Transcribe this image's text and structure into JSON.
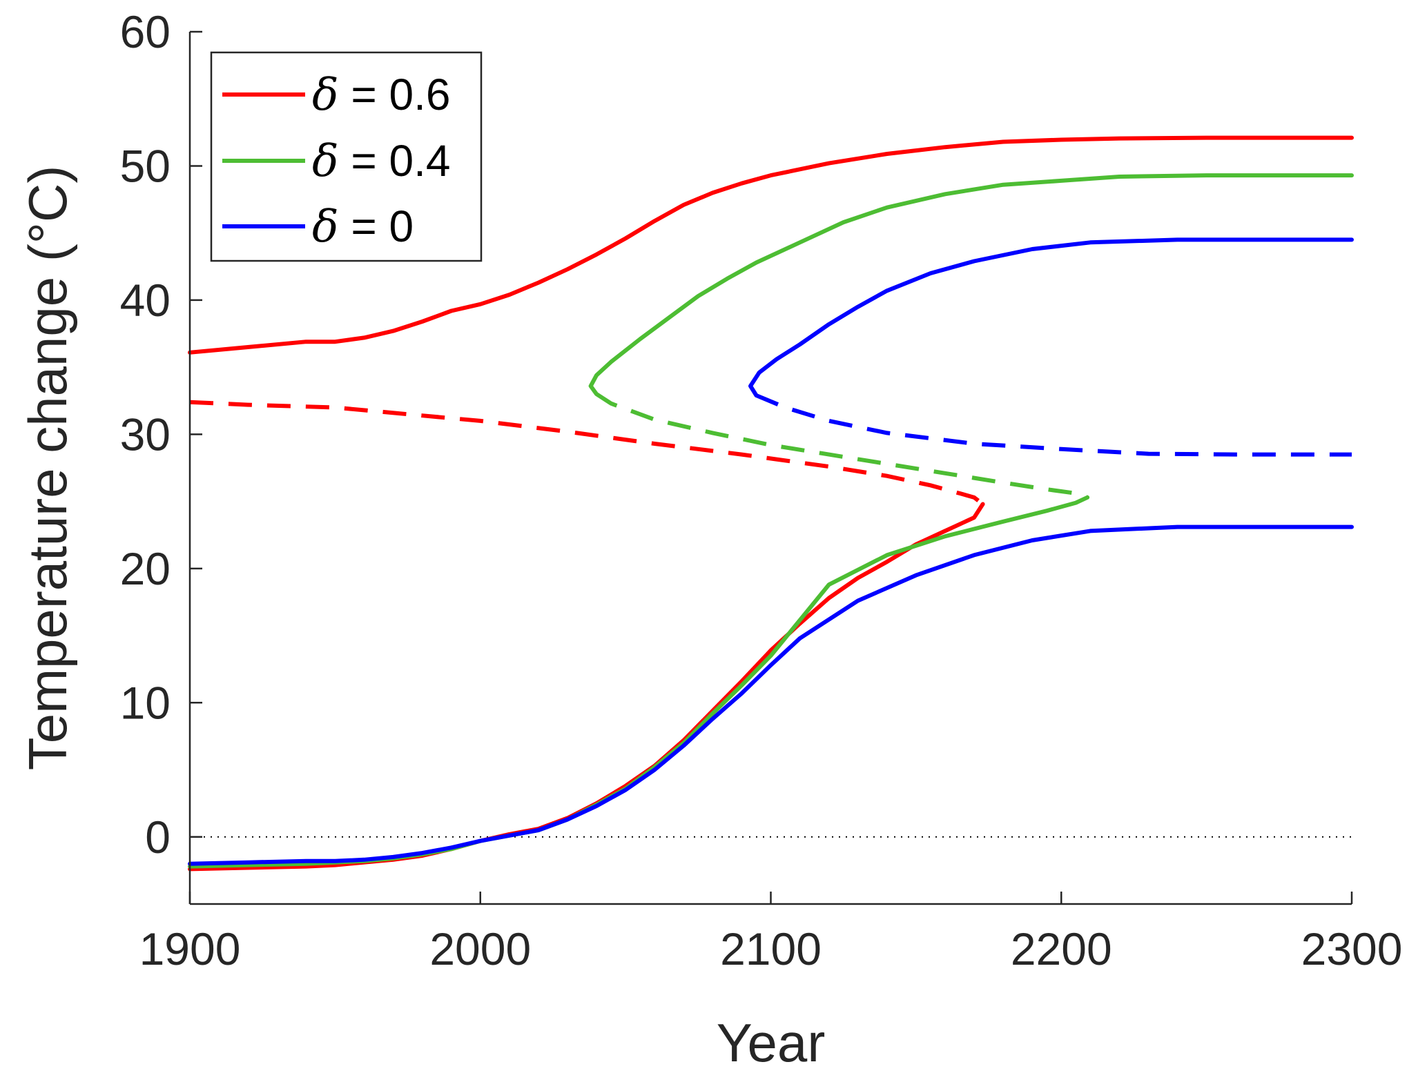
{
  "chart_data": {
    "type": "line",
    "title": "",
    "xlabel": "Year",
    "ylabel": "Temperature change (°C)",
    "xlim": [
      1900,
      2300
    ],
    "ylim": [
      -5,
      60
    ],
    "xticks": [
      1900,
      2000,
      2100,
      2200,
      2300
    ],
    "yticks": [
      0,
      10,
      20,
      30,
      40,
      50,
      60
    ],
    "grid": false,
    "legend_position": "top-left",
    "zero_reference_line": {
      "y": 0,
      "style": "dotted",
      "color": "#000000"
    },
    "legend": [
      {
        "symbol": "δ",
        "text": " = 0.6",
        "color": "#ff0000"
      },
      {
        "symbol": "δ",
        "text": " = 0.4",
        "color": "#4dbd33"
      },
      {
        "symbol": "δ",
        "text": " = 0",
        "color": "#0000ff"
      }
    ],
    "series": [
      {
        "legend_index": 0,
        "color": "#ff0000",
        "upper_stable": [
          [
            1900,
            36.1
          ],
          [
            1920,
            36.5
          ],
          [
            1940,
            36.9
          ],
          [
            1950,
            36.9
          ],
          [
            1960,
            37.2
          ],
          [
            1970,
            37.7
          ],
          [
            1980,
            38.4
          ],
          [
            1990,
            39.2
          ],
          [
            2000,
            39.7
          ],
          [
            2010,
            40.4
          ],
          [
            2020,
            41.3
          ],
          [
            2030,
            42.3
          ],
          [
            2040,
            43.4
          ],
          [
            2050,
            44.6
          ],
          [
            2060,
            45.9
          ],
          [
            2070,
            47.1
          ],
          [
            2080,
            48.0
          ],
          [
            2090,
            48.7
          ],
          [
            2100,
            49.3
          ],
          [
            2120,
            50.2
          ],
          [
            2140,
            50.9
          ],
          [
            2160,
            51.4
          ],
          [
            2180,
            51.8
          ],
          [
            2200,
            51.95
          ],
          [
            2220,
            52.05
          ],
          [
            2250,
            52.1
          ],
          [
            2300,
            52.1
          ]
        ],
        "unstable": [
          [
            1900,
            32.4
          ],
          [
            1920,
            32.2
          ],
          [
            1950,
            32.0
          ],
          [
            1980,
            31.4
          ],
          [
            2000,
            31.0
          ],
          [
            2030,
            30.2
          ],
          [
            2060,
            29.3
          ],
          [
            2090,
            28.5
          ],
          [
            2120,
            27.6
          ],
          [
            2140,
            26.9
          ],
          [
            2155,
            26.2
          ],
          [
            2165,
            25.6
          ],
          [
            2170,
            25.3
          ],
          [
            2173,
            24.8
          ]
        ],
        "lower_stable": [
          [
            2173,
            24.8
          ],
          [
            2170,
            23.8
          ],
          [
            2160,
            22.8
          ],
          [
            2150,
            21.8
          ],
          [
            2140,
            20.5
          ],
          [
            2130,
            19.3
          ],
          [
            2120,
            17.8
          ],
          [
            2110,
            15.9
          ],
          [
            2100,
            13.9
          ],
          [
            2090,
            11.6
          ],
          [
            2080,
            9.4
          ],
          [
            2070,
            7.2
          ],
          [
            2060,
            5.3
          ],
          [
            2050,
            3.8
          ],
          [
            2040,
            2.5
          ],
          [
            2030,
            1.4
          ],
          [
            2020,
            0.6
          ],
          [
            2010,
            0.2
          ],
          [
            2000,
            -0.3
          ],
          [
            1990,
            -0.9
          ],
          [
            1980,
            -1.4
          ],
          [
            1970,
            -1.7
          ],
          [
            1960,
            -1.9
          ],
          [
            1950,
            -2.1
          ],
          [
            1940,
            -2.2
          ],
          [
            1920,
            -2.3
          ],
          [
            1900,
            -2.4
          ]
        ]
      },
      {
        "legend_index": 1,
        "color": "#4dbd33",
        "upper_stable": [
          [
            2040,
            33.0
          ],
          [
            2038,
            33.6
          ],
          [
            2040,
            34.4
          ],
          [
            2045,
            35.4
          ],
          [
            2055,
            37.1
          ],
          [
            2065,
            38.7
          ],
          [
            2075,
            40.3
          ],
          [
            2085,
            41.6
          ],
          [
            2095,
            42.8
          ],
          [
            2110,
            44.3
          ],
          [
            2125,
            45.8
          ],
          [
            2140,
            46.9
          ],
          [
            2160,
            47.9
          ],
          [
            2180,
            48.6
          ],
          [
            2200,
            48.9
          ],
          [
            2220,
            49.2
          ],
          [
            2250,
            49.3
          ],
          [
            2300,
            49.3
          ]
        ],
        "unstable": [
          [
            2040,
            33.0
          ],
          [
            2045,
            32.3
          ],
          [
            2060,
            31.1
          ],
          [
            2080,
            30.1
          ],
          [
            2100,
            29.2
          ],
          [
            2120,
            28.5
          ],
          [
            2140,
            27.8
          ],
          [
            2160,
            27.1
          ],
          [
            2180,
            26.4
          ],
          [
            2195,
            25.9
          ],
          [
            2205,
            25.6
          ],
          [
            2209,
            25.3
          ]
        ],
        "lower_stable": [
          [
            2209,
            25.3
          ],
          [
            2205,
            24.9
          ],
          [
            2195,
            24.3
          ],
          [
            2180,
            23.5
          ],
          [
            2160,
            22.4
          ],
          [
            2140,
            21.0
          ],
          [
            2120,
            18.8
          ],
          [
            2100,
            13.5
          ],
          [
            2090,
            11.3
          ],
          [
            2080,
            9.2
          ],
          [
            2070,
            7.0
          ],
          [
            2060,
            5.2
          ],
          [
            2050,
            3.6
          ],
          [
            2040,
            2.4
          ],
          [
            2030,
            1.3
          ],
          [
            2020,
            0.5
          ],
          [
            2010,
            0.1
          ],
          [
            2000,
            -0.3
          ],
          [
            1990,
            -0.9
          ],
          [
            1980,
            -1.3
          ],
          [
            1970,
            -1.6
          ],
          [
            1960,
            -1.8
          ],
          [
            1950,
            -1.9
          ],
          [
            1940,
            -2.0
          ],
          [
            1920,
            -2.1
          ],
          [
            1900,
            -2.2
          ]
        ]
      },
      {
        "legend_index": 2,
        "color": "#0000ff",
        "upper_stable": [
          [
            2095,
            32.9
          ],
          [
            2093,
            33.6
          ],
          [
            2096,
            34.6
          ],
          [
            2102,
            35.6
          ],
          [
            2110,
            36.7
          ],
          [
            2120,
            38.2
          ],
          [
            2130,
            39.5
          ],
          [
            2140,
            40.7
          ],
          [
            2155,
            42.0
          ],
          [
            2170,
            42.9
          ],
          [
            2190,
            43.8
          ],
          [
            2210,
            44.3
          ],
          [
            2240,
            44.5
          ],
          [
            2300,
            44.5
          ]
        ],
        "unstable": [
          [
            2095,
            32.9
          ],
          [
            2105,
            32.0
          ],
          [
            2120,
            31.0
          ],
          [
            2140,
            30.1
          ],
          [
            2170,
            29.3
          ],
          [
            2200,
            28.9
          ],
          [
            2230,
            28.55
          ],
          [
            2260,
            28.5
          ],
          [
            2300,
            28.5
          ]
        ],
        "lower_stable": [
          [
            2300,
            23.1
          ],
          [
            2240,
            23.1
          ],
          [
            2210,
            22.8
          ],
          [
            2190,
            22.1
          ],
          [
            2170,
            21.0
          ],
          [
            2150,
            19.5
          ],
          [
            2130,
            17.6
          ],
          [
            2110,
            14.8
          ],
          [
            2100,
            12.8
          ],
          [
            2090,
            10.7
          ],
          [
            2080,
            8.8
          ],
          [
            2070,
            6.8
          ],
          [
            2060,
            5.0
          ],
          [
            2050,
            3.5
          ],
          [
            2040,
            2.3
          ],
          [
            2030,
            1.3
          ],
          [
            2020,
            0.5
          ],
          [
            2010,
            0.1
          ],
          [
            2000,
            -0.3
          ],
          [
            1990,
            -0.8
          ],
          [
            1980,
            -1.2
          ],
          [
            1970,
            -1.5
          ],
          [
            1960,
            -1.7
          ],
          [
            1950,
            -1.8
          ],
          [
            1940,
            -1.8
          ],
          [
            1920,
            -1.9
          ],
          [
            1900,
            -2.0
          ]
        ]
      }
    ]
  }
}
